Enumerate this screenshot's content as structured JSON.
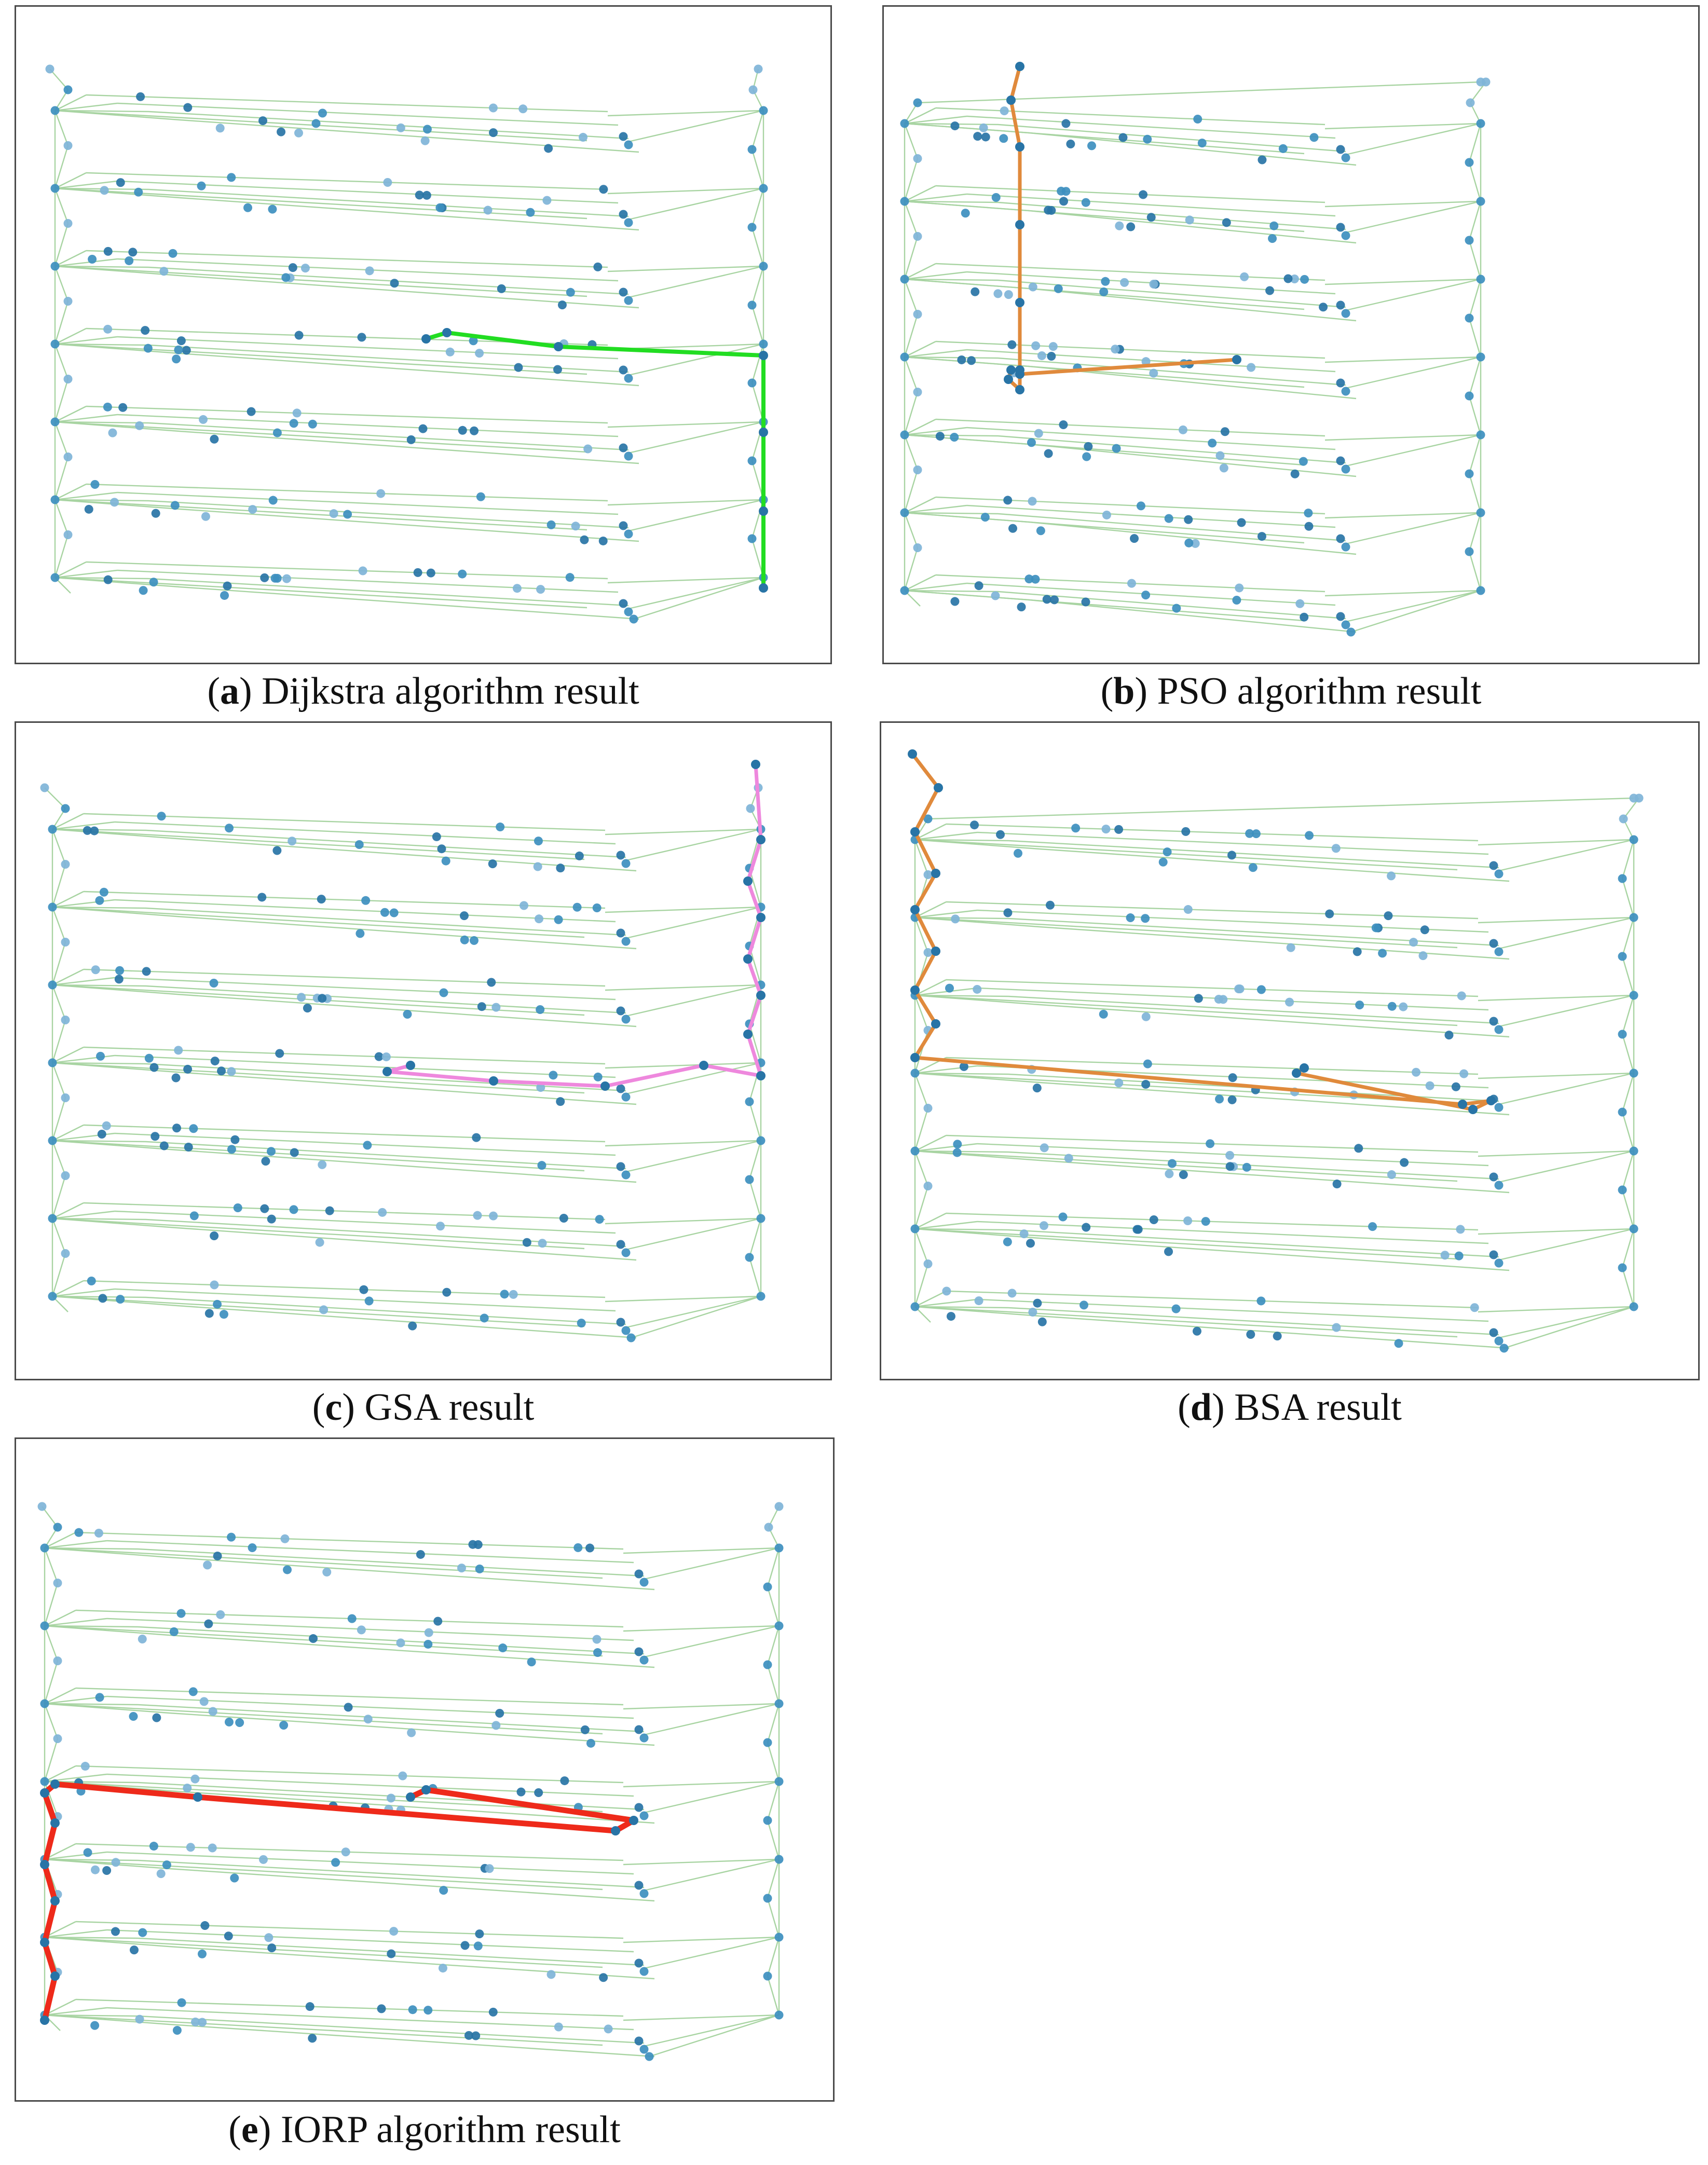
{
  "figure": {
    "panels": [
      {
        "id": "a",
        "letter": "a",
        "caption": "Dijkstra algorithm result",
        "path_color": "#22dd22"
      },
      {
        "id": "b",
        "letter": "b",
        "caption": "PSO algorithm result",
        "path_color": "#e08a3c"
      },
      {
        "id": "c",
        "letter": "c",
        "caption": "GSA result",
        "path_color": "#ee88dd"
      },
      {
        "id": "d",
        "letter": "d",
        "caption": "BSA result",
        "path_color": "#e08a3c"
      },
      {
        "id": "e",
        "letter": "e",
        "caption": "IORP algorithm result",
        "path_color": "#ee2a1a"
      }
    ],
    "colors": {
      "edge": "#a8d4a2",
      "node": "#3d8fbf",
      "node_light": "#7fb4d8",
      "node_dark": "#2874a6"
    },
    "network": {
      "floors": 7,
      "description_nodes": "graph of corridor nodes per floor with two stair columns"
    }
  }
}
